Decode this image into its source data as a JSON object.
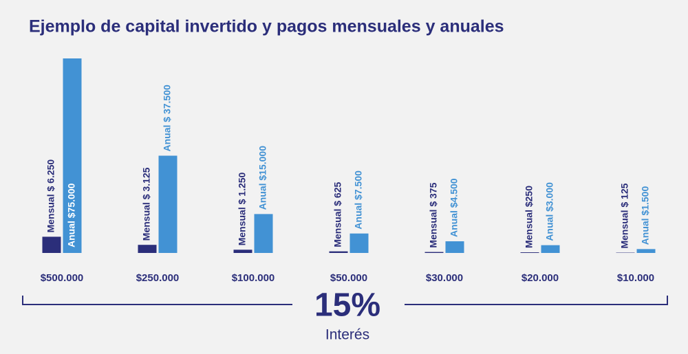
{
  "chart_data": {
    "type": "bar",
    "title": "Ejemplo de capital invertido y pagos mensuales y anuales",
    "categories": [
      "$500.000",
      "$250.000",
      "$100.000",
      "$50.000",
      "$30.000",
      "$20.000",
      "$10.000"
    ],
    "series": [
      {
        "color": "#2b2e7a",
        "values": [
          6250,
          3125,
          1250,
          625,
          375,
          250,
          125
        ],
        "value_labels": [
          "Mensual $ 6.250",
          "Mensual $ 3.125",
          "Mensual $ 1.250",
          "Mensual $ 625",
          "Mensual $ 375",
          "Mensual  $250",
          "Mensual $ 125"
        ]
      },
      {
        "color": "#4292d4",
        "values": [
          75000,
          37500,
          15000,
          7500,
          4500,
          3000,
          1500
        ],
        "value_labels": [
          "Anual  $75.000",
          "Anual $ 37.500",
          "Anual $15.000",
          "Anual $7.500",
          "Anual $4.500",
          "Anual $3.000",
          "Anual $1.500"
        ]
      }
    ],
    "rate": "15%",
    "rate_label": "Interés"
  }
}
